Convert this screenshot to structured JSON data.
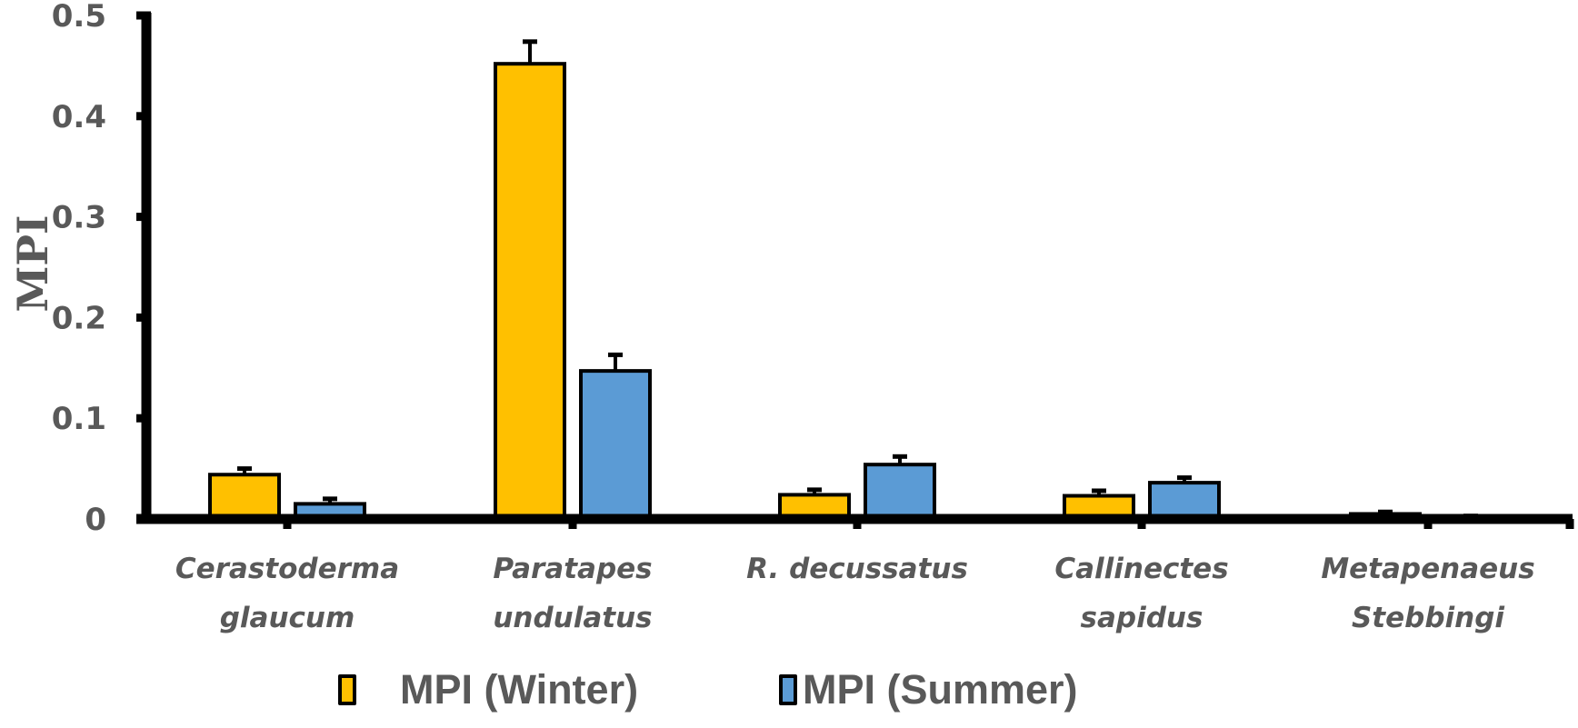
{
  "chart_data": {
    "type": "bar",
    "title": "",
    "xlabel": "",
    "ylabel": "MPI",
    "ylim": [
      0,
      0.5
    ],
    "yticks": [
      "0",
      "0.1",
      "0.2",
      "0.3",
      "0.4",
      "0.5"
    ],
    "grid": false,
    "legend_position": "bottom",
    "categories": [
      [
        "Cerastoderma",
        "glaucum"
      ],
      [
        "Paratapes",
        "undulatus"
      ],
      [
        "R. decussatus"
      ],
      [
        "Callinectes",
        "sapidus"
      ],
      [
        "Metapenaeus",
        "Stebbingi"
      ]
    ],
    "category_names": [
      "Cerastoderma glaucum",
      "Paratapes undulatus",
      "R. decussatus",
      "Callinectes sapidus",
      "Metapenaeus Stebbingi"
    ],
    "series": [
      {
        "name": "MPI (Winter)",
        "color": "#FFC000",
        "values": [
          0.044,
          0.452,
          0.024,
          0.023,
          0.005
        ],
        "error_upper": [
          0.006,
          0.022,
          0.005,
          0.005,
          0.002
        ]
      },
      {
        "name": "MPI (Summer)",
        "color": "#5B9BD5",
        "values": [
          0.015,
          0.147,
          0.054,
          0.036,
          0.002
        ],
        "error_upper": [
          0.005,
          0.016,
          0.008,
          0.005,
          0.001
        ]
      }
    ]
  },
  "legend": {
    "winter_label": "MPI (Winter)",
    "summer_label": "MPI (Summer)"
  },
  "axis": {
    "ylabel": "MPI"
  }
}
